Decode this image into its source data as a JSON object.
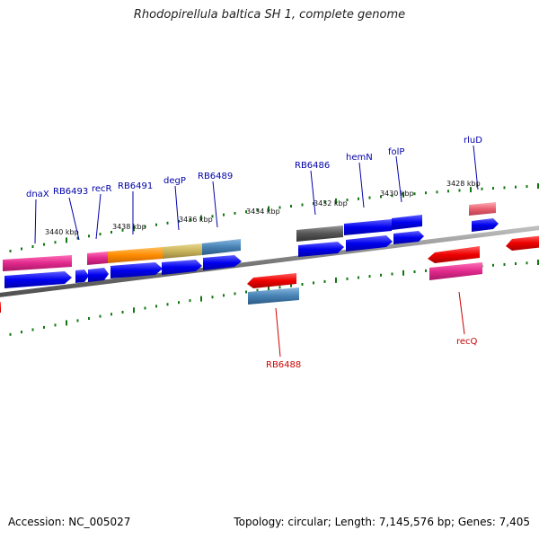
{
  "title": "Rhodopirellula baltica SH 1, complete genome",
  "footer": {
    "accession": "Accession: NC_005027",
    "summary": "Topology: circular; Length: 7,145,576 bp; Genes: 7,405"
  },
  "colors": {
    "forward_label": "#0000aa",
    "reverse_label": "#cc0000",
    "backbone": "#888888",
    "tick": "#117711",
    "cds_blue": "#0000ee",
    "cds_red": "#ee0000"
  },
  "scale_labels": [
    "3440 kbp",
    "3438 kbp",
    "3436 kbp",
    "3434 kbp",
    "3432 kbp",
    "3430 kbp",
    "3428 kbp"
  ],
  "forward_genes": [
    {
      "id": "dnaX",
      "label": "dnaX",
      "feature_color": "#e0288c",
      "cds_color": "#0000ee"
    },
    {
      "id": "RB6493",
      "label": "RB6493",
      "feature_color": null,
      "cds_color": "#0000ee"
    },
    {
      "id": "recR",
      "label": "recR",
      "feature_color": "#e0288c",
      "cds_color": "#0000ee"
    },
    {
      "id": "RB6491",
      "label": "RB6491",
      "feature_color": "#ff8c00",
      "cds_color": "#0000ee"
    },
    {
      "id": "degP",
      "label": "degP",
      "feature_color": "#c8b45a",
      "cds_color": "#0000ee"
    },
    {
      "id": "RB6489",
      "label": "RB6489",
      "feature_color": "#4682b4",
      "cds_color": "#0000ee"
    },
    {
      "id": "RB6486",
      "label": "RB6486",
      "feature_color": "#555555",
      "cds_color": "#0000ee"
    },
    {
      "id": "hemN",
      "label": "hemN",
      "feature_color": "#0000ee",
      "cds_color": "#0000ee"
    },
    {
      "id": "folP",
      "label": "folP",
      "feature_color": "#0000ee",
      "cds_color": "#0000ee"
    },
    {
      "id": "rluD",
      "label": "rluD",
      "feature_color": "#e86070",
      "cds_color": "#0000ee"
    }
  ],
  "reverse_genes": [
    {
      "id": "RB6488",
      "label": "RB6488",
      "feature_color": "#4682b4",
      "cds_color": "#ee0000"
    },
    {
      "id": "recQ",
      "label": "recQ",
      "feature_color": "#e0288c",
      "cds_color": "#ee0000"
    }
  ]
}
